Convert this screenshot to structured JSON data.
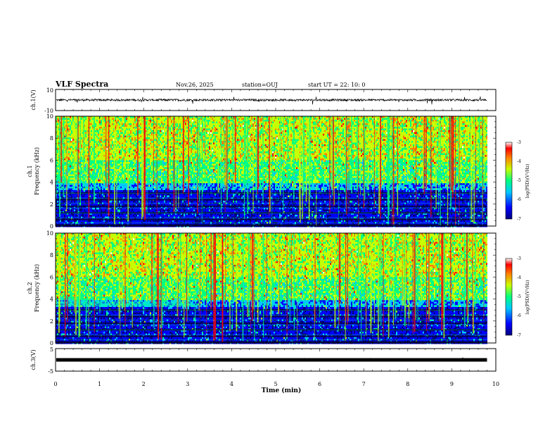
{
  "header": {
    "title": "VLF Spectra",
    "date": "Nov.26, 2025",
    "station": "station=OUJ",
    "start": "start  UT =   22: 10: 0"
  },
  "colors": {
    "spectrum": [
      "#000080",
      "#0000ff",
      "#00c8ff",
      "#00ff80",
      "#c8ff00",
      "#ff8000",
      "#ff0000",
      "#ffffff"
    ]
  },
  "chart_data": [
    {
      "type": "line",
      "panel": "ch1-waveform",
      "ylabel": "ch.1(V)",
      "xlim": [
        0,
        10
      ],
      "ylim": [
        -10,
        10
      ],
      "y_ticks": [
        "10",
        "-10"
      ],
      "baseline_value": 0,
      "noise_amplitude": 1
    },
    {
      "type": "heatmap",
      "panel": "ch1-spectrogram",
      "ylabel": "ch.1\nFrequency (kHz)",
      "ylabel_lines": [
        "ch.1",
        "Frequency (kHz)"
      ],
      "xlim": [
        0,
        10
      ],
      "ylim": [
        0,
        10
      ],
      "y_ticks": [
        "0",
        "2",
        "4",
        "6",
        "8",
        "10"
      ],
      "data_end_min": 9.8,
      "colorbar": {
        "label": "log(PSD)(V²/Hz)",
        "range": [
          -7,
          -3
        ],
        "ticks": [
          "-3",
          "-4",
          "-5",
          "-6",
          "-7"
        ]
      }
    },
    {
      "type": "heatmap",
      "panel": "ch2-spectrogram",
      "ylabel": "ch.2\nFrequency (kHz)",
      "ylabel_lines": [
        "ch.2",
        "Frequency (kHz)"
      ],
      "xlim": [
        0,
        10
      ],
      "ylim": [
        0,
        10
      ],
      "y_ticks": [
        "0",
        "2",
        "4",
        "6",
        "8",
        "10"
      ],
      "data_end_min": 9.8,
      "colorbar": {
        "label": "log(PSD)(V²/Hz)",
        "range": [
          -7,
          -3
        ],
        "ticks": [
          "-3",
          "-4",
          "-5",
          "-6",
          "-7"
        ]
      }
    },
    {
      "type": "line",
      "panel": "ch3-waveform",
      "ylabel": "ch.3(V)",
      "xlim": [
        0,
        10
      ],
      "ylim": [
        -5,
        5
      ],
      "y_ticks": [
        "5",
        "0",
        "-5"
      ],
      "baseline_value": 0,
      "noise_amplitude": 0.3
    }
  ],
  "xaxis": {
    "label": "Time (min)",
    "ticks": [
      "0",
      "1",
      "2",
      "3",
      "4",
      "5",
      "6",
      "7",
      "8",
      "9",
      "10"
    ]
  }
}
